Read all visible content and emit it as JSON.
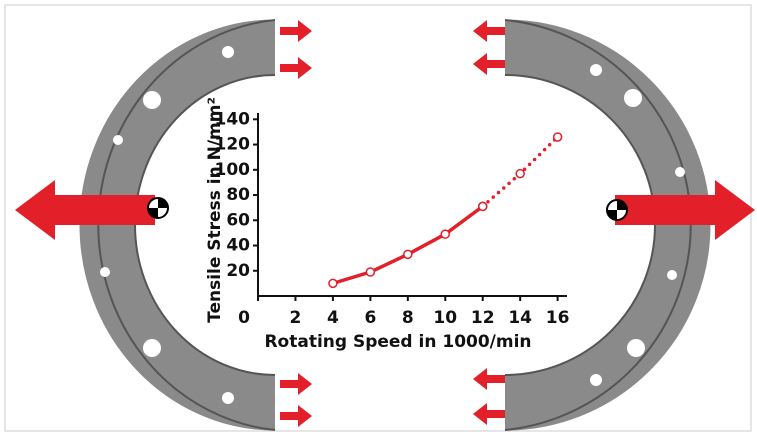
{
  "chart_data": {
    "type": "line",
    "x_label": "Rotating Speed in 1000/min",
    "y_label": "Tensile Stress in N/mm²",
    "series": [
      {
        "x": [
          4,
          6,
          8,
          10,
          12
        ],
        "values": [
          10,
          19,
          33,
          49,
          71
        ],
        "color": "#e3202a",
        "style": "solid"
      },
      {
        "x": [
          12,
          14,
          16
        ],
        "values": [
          71,
          97,
          126
        ],
        "color": "#e3202a",
        "style": "dotted"
      }
    ],
    "xlim": [
      0,
      16.5
    ],
    "xticks": [
      0,
      2,
      4,
      6,
      8,
      10,
      12,
      14,
      16
    ],
    "ylim": [
      0,
      145
    ],
    "yticks": [
      20,
      40,
      60,
      80,
      100,
      120,
      140
    ]
  }
}
